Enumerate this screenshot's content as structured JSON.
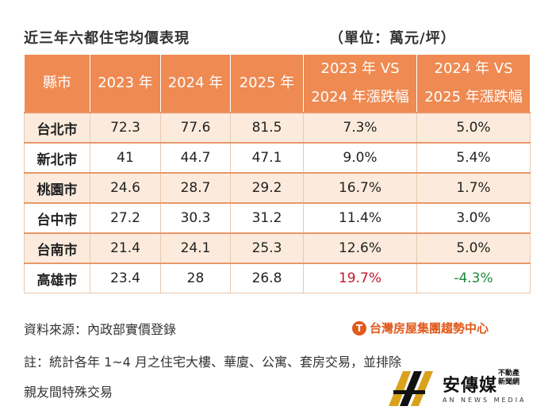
{
  "title": "近三年六都住宅均價表現",
  "unit": "（單位：萬元/坪）",
  "table": {
    "headers": [
      {
        "line1": "縣市",
        "line2": ""
      },
      {
        "line1": "2023 年",
        "line2": ""
      },
      {
        "line1": "2024 年",
        "line2": ""
      },
      {
        "line1": "2025 年",
        "line2": ""
      },
      {
        "line1": "2023 年 VS",
        "line2": "2024 年漲跌幅"
      },
      {
        "line1": "2024 年 VS",
        "line2": "2025 年漲跌幅"
      }
    ],
    "rows": [
      {
        "city": "台北市",
        "y2023": "72.3",
        "y2024": "77.6",
        "y2025": "81.5",
        "chg1": "7.3%",
        "chg2": "5.0%"
      },
      {
        "city": "新北市",
        "y2023": "41",
        "y2024": "44.7",
        "y2025": "47.1",
        "chg1": "9.0%",
        "chg2": "5.4%"
      },
      {
        "city": "桃園市",
        "y2023": "24.6",
        "y2024": "28.7",
        "y2025": "29.2",
        "chg1": "16.7%",
        "chg2": "1.7%"
      },
      {
        "city": "台中市",
        "y2023": "27.2",
        "y2024": "30.3",
        "y2025": "31.2",
        "chg1": "11.4%",
        "chg2": "3.0%"
      },
      {
        "city": "台南市",
        "y2023": "21.4",
        "y2024": "24.1",
        "y2025": "25.3",
        "chg1": "12.6%",
        "chg2": "5.0%"
      },
      {
        "city": "高雄市",
        "y2023": "23.4",
        "y2024": "28",
        "y2025": "26.8",
        "chg1": "19.7%",
        "chg2": "-4.3%"
      }
    ]
  },
  "source": "資料來源：內政部實價登錄",
  "note_line1": "註：統計各年 1~4 月之住宅大樓、華廈、公寓、套房交易，並排除",
  "note_line2": "親友間特殊交易",
  "brand": {
    "name": "台灣房屋集團趨勢中心",
    "logo_icon": "t-circle-logo-icon"
  },
  "media": {
    "name": "安傳媒",
    "sub": "不動產新聞網",
    "en": "AN NEWS MEDIA"
  },
  "colors": {
    "header": "#ee8a52",
    "shade": "#fcebdc",
    "positive": "#c0192c",
    "negative": "#1a8a3a"
  }
}
